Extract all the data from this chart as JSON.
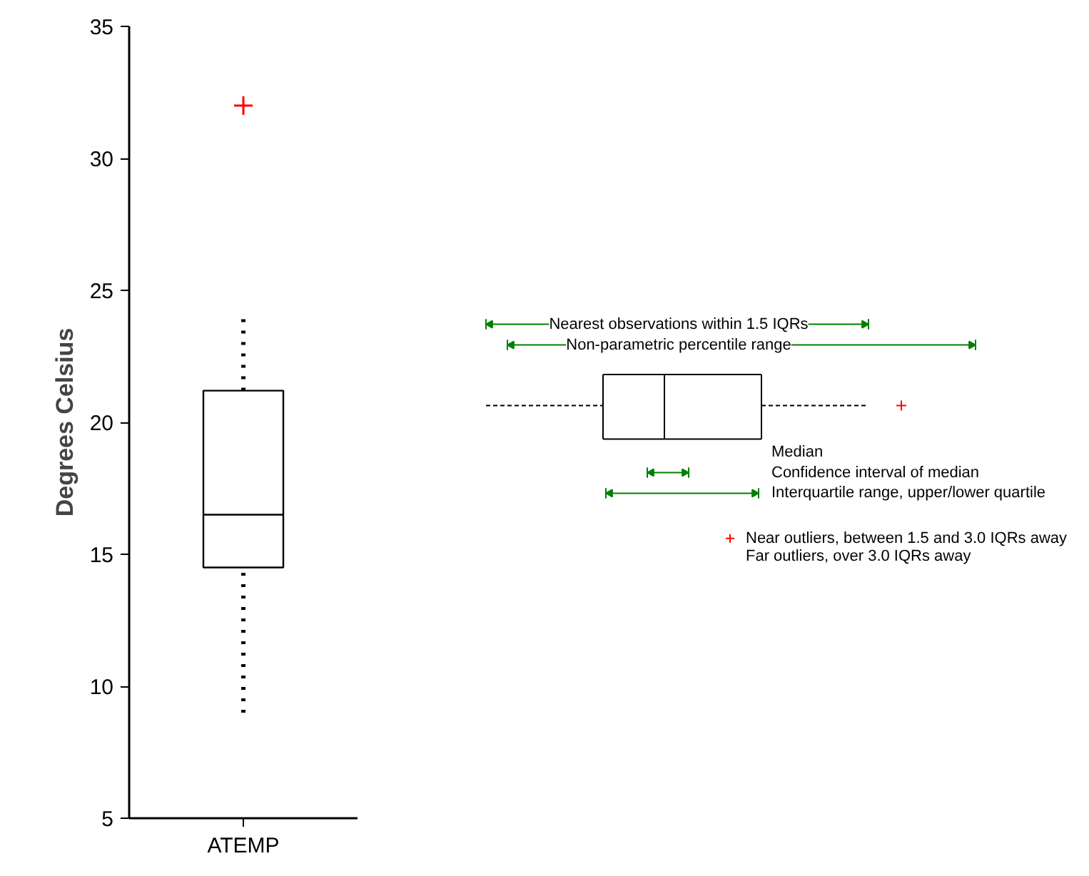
{
  "chart_data": {
    "type": "box",
    "categories": [
      "ATEMP"
    ],
    "ylabel": "Degrees Celsius",
    "ylim": [
      5,
      35
    ],
    "yticks": [
      5,
      10,
      15,
      20,
      25,
      30,
      35
    ],
    "boxes": [
      {
        "low": 9,
        "q1": 14.5,
        "median": 16.5,
        "q3": 21.2,
        "high": 24,
        "outliers": [
          32
        ]
      }
    ],
    "annotations": [
      "Nearest observations within 1.5 IQRs",
      "Non-parametric percentile range",
      "Median",
      "Confidence interval of median",
      "Interquartile range, upper/lower quartile",
      "Near outliers, between 1.5 and 3.0 IQRs away",
      "Far outliers, over 3.0 IQRs away"
    ]
  }
}
